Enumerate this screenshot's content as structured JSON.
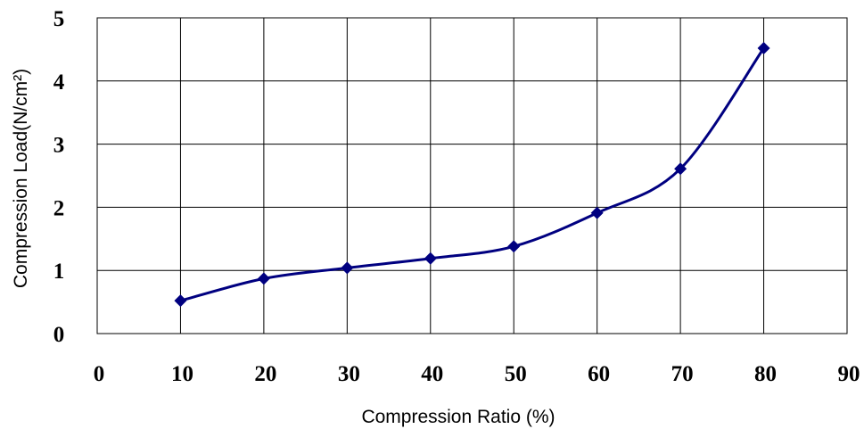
{
  "chart_data": {
    "type": "line",
    "title": "",
    "xlabel": "Compression Ratio (%)",
    "ylabel": "Compression Load(N/cm²)",
    "xlim": [
      0,
      90
    ],
    "ylim": [
      0,
      5
    ],
    "x_ticks": [
      0,
      10,
      20,
      30,
      40,
      50,
      60,
      70,
      80,
      90
    ],
    "y_ticks": [
      0,
      1,
      2,
      3,
      4,
      5
    ],
    "grid": true,
    "legend": "none",
    "series": [
      {
        "color": "#000080",
        "marker": "diamond",
        "smooth": true,
        "x": [
          10,
          20,
          30,
          40,
          50,
          60,
          70,
          80
        ],
        "y": [
          0.52,
          0.87,
          1.04,
          1.19,
          1.38,
          1.91,
          2.61,
          4.52
        ]
      }
    ]
  }
}
